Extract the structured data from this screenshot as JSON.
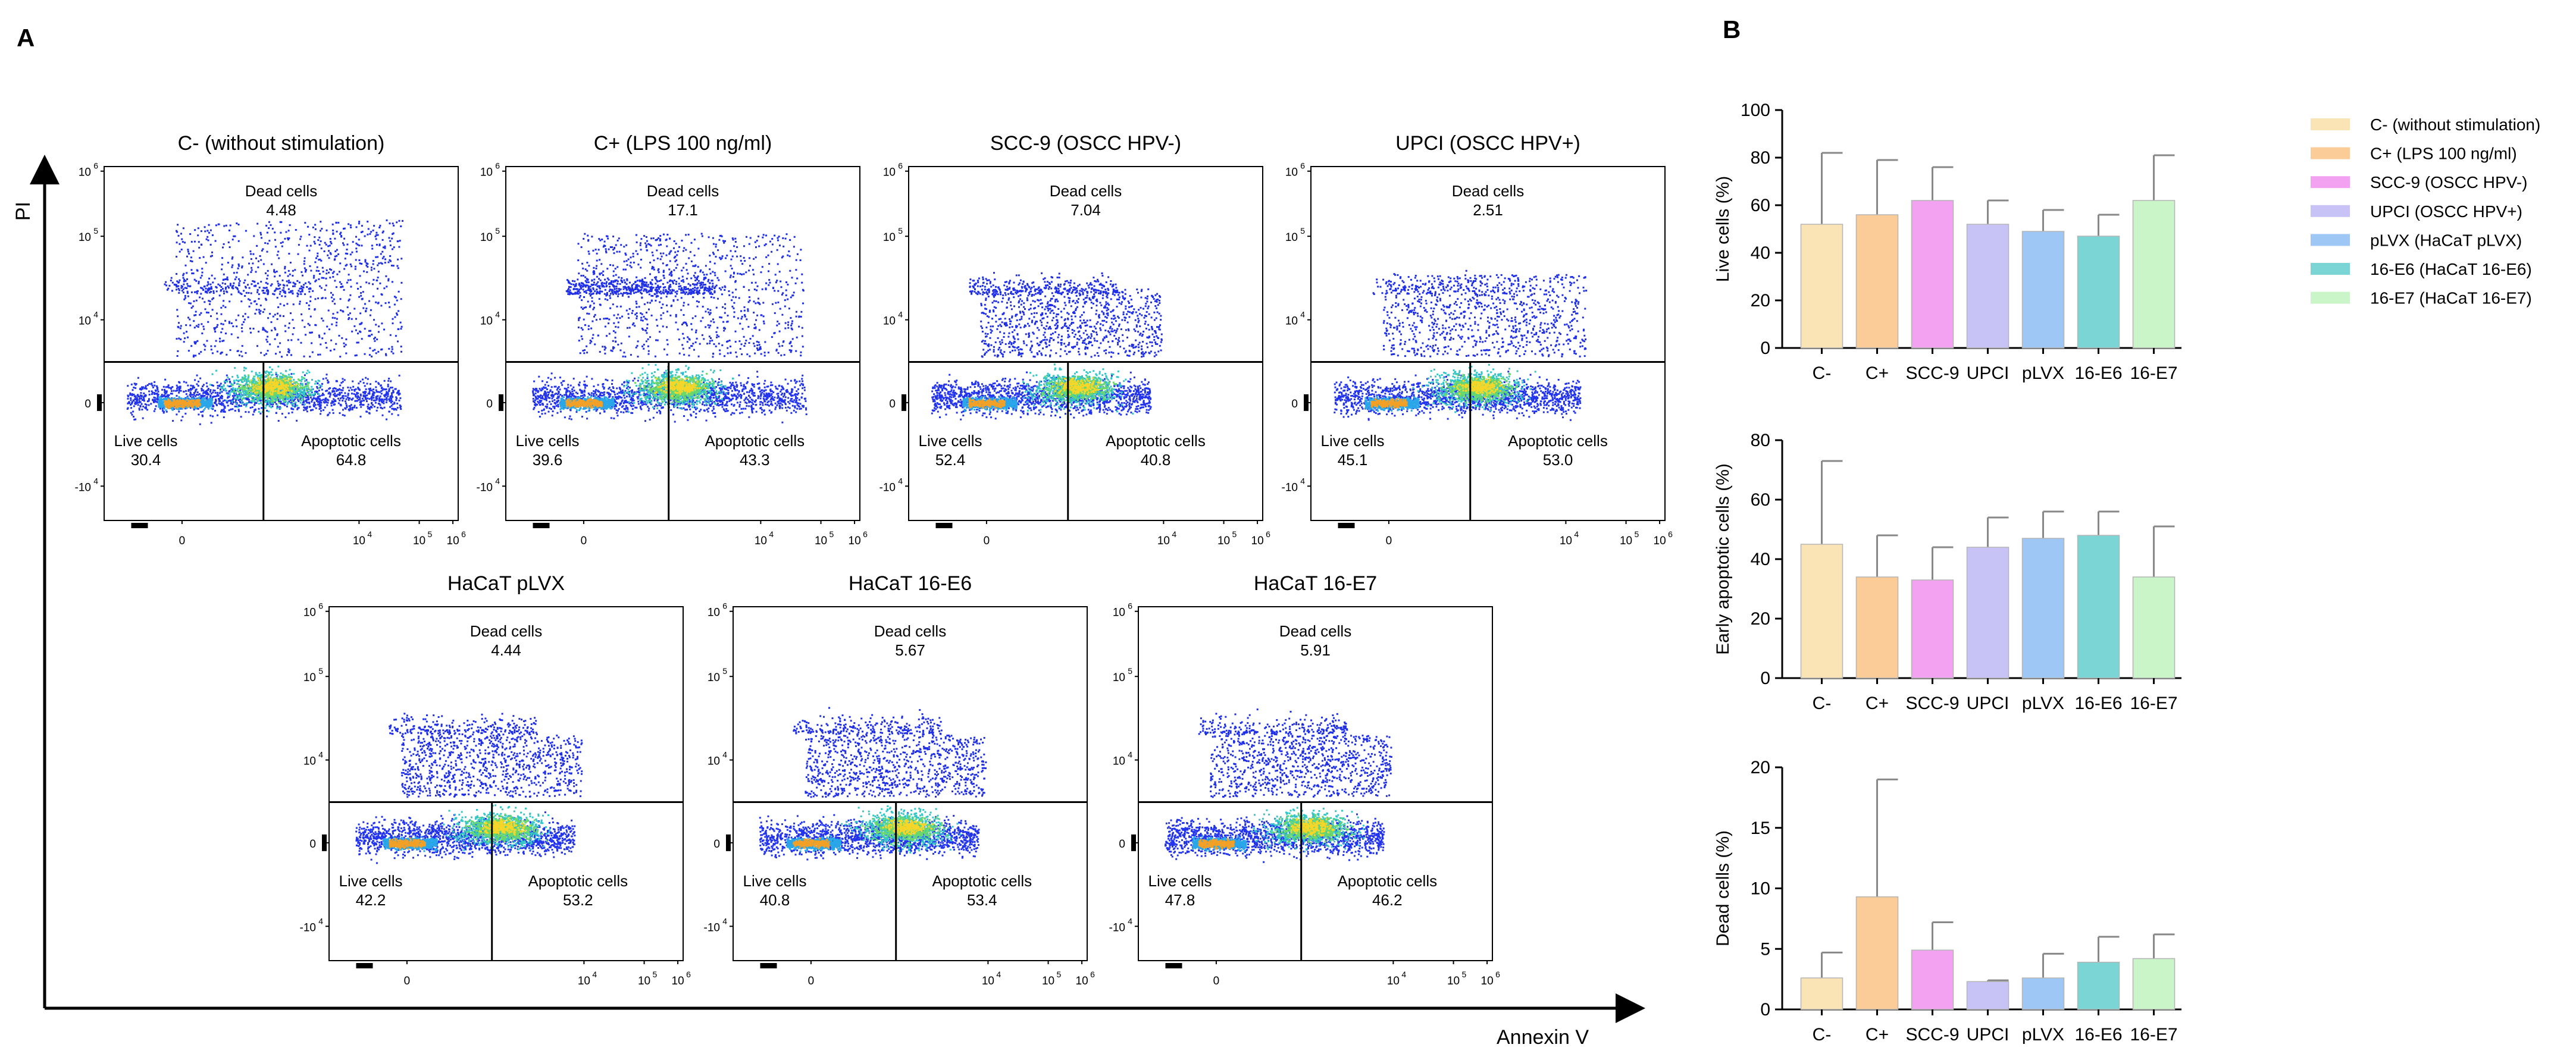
{
  "panel_labels": {
    "a": "A",
    "b": "B"
  },
  "axes": {
    "y_label": "PI",
    "x_label": "Annexin V"
  },
  "tick_labels": {
    "y": [
      "10",
      "10",
      "10",
      "0",
      "-10"
    ],
    "y_exp": [
      "6",
      "5",
      "4",
      "",
      "4"
    ],
    "x": [
      "0",
      "10",
      "10",
      "10"
    ],
    "x_exp": [
      "",
      "4",
      "5",
      "6"
    ]
  },
  "quadrant_labels": {
    "dead": "Dead cells",
    "live": "Live cells",
    "apoptotic": "Apoptotic cells"
  },
  "flow_plots": [
    {
      "title": "C- (without stimulation)",
      "dead": "4.48",
      "live": "30.4",
      "apoptotic": "64.8"
    },
    {
      "title": "C+ (LPS 100 ng/ml)",
      "dead": "17.1",
      "live": "39.6",
      "apoptotic": "43.3"
    },
    {
      "title": "SCC-9 (OSCC HPV-)",
      "dead": "7.04",
      "live": "52.4",
      "apoptotic": "40.8"
    },
    {
      "title": "UPCI (OSCC HPV+)",
      "dead": "2.51",
      "live": "45.1",
      "apoptotic": "53.0"
    },
    {
      "title": "HaCaT pLVX",
      "dead": "4.44",
      "live": "42.2",
      "apoptotic": "53.2"
    },
    {
      "title": "HaCaT 16-E6",
      "dead": "5.67",
      "live": "40.8",
      "apoptotic": "53.4"
    },
    {
      "title": "HaCaT 16-E7",
      "dead": "5.91",
      "live": "47.8",
      "apoptotic": "46.2"
    }
  ],
  "legend": [
    {
      "label": "C- (without stimulation)",
      "color": "#fae3b5"
    },
    {
      "label": "C+ (LPS 100 ng/ml)",
      "color": "#fbcb98"
    },
    {
      "label": "SCC-9 (OSCC HPV-)",
      "color": "#f3a2f1"
    },
    {
      "label": "UPCI (OSCC HPV+)",
      "color": "#c7c3f6"
    },
    {
      "label": "pLVX (HaCaT pLVX)",
      "color": "#9ec7f6"
    },
    {
      "label": "16-E6 (HaCaT 16-E6)",
      "color": "#7cd5d5"
    },
    {
      "label": "16-E7 (HaCaT 16-E7)",
      "color": "#c9f5c9"
    }
  ],
  "chart_data": [
    {
      "type": "bar",
      "title": "",
      "xlabel": "",
      "ylabel": "Live cells (%)",
      "categories": [
        "C-",
        "C+",
        "SCC-9",
        "UPCI",
        "pLVX",
        "16-E6",
        "16-E7"
      ],
      "values": [
        52,
        56,
        62,
        52,
        49,
        47,
        62
      ],
      "errors": [
        30,
        23,
        14,
        10,
        9,
        9,
        19
      ],
      "ylim": [
        0,
        100
      ],
      "ticks": [
        "0",
        "20",
        "40",
        "60",
        "80",
        "100"
      ]
    },
    {
      "type": "bar",
      "title": "",
      "xlabel": "",
      "ylabel": "Early apoptotic cells (%)",
      "categories": [
        "C-",
        "C+",
        "SCC-9",
        "UPCI",
        "pLVX",
        "16-E6",
        "16-E7"
      ],
      "values": [
        45,
        34,
        33,
        44,
        47,
        48,
        34
      ],
      "errors": [
        28,
        14,
        11,
        10,
        9,
        8,
        17
      ],
      "ylim": [
        0,
        80
      ],
      "ticks": [
        "0",
        "20",
        "40",
        "60",
        "80"
      ]
    },
    {
      "type": "bar",
      "title": "",
      "xlabel": "",
      "ylabel": "Dead cells (%)",
      "categories": [
        "C-",
        "C+",
        "SCC-9",
        "UPCI",
        "pLVX",
        "16-E6",
        "16-E7"
      ],
      "values": [
        2.6,
        9.3,
        4.9,
        2.3,
        2.6,
        3.9,
        4.2
      ],
      "errors": [
        2.1,
        9.7,
        2.3,
        0.1,
        2.0,
        2.1,
        2.0
      ],
      "ylim": [
        0,
        20
      ],
      "ticks": [
        "0",
        "5",
        "10",
        "15",
        "20"
      ]
    }
  ]
}
